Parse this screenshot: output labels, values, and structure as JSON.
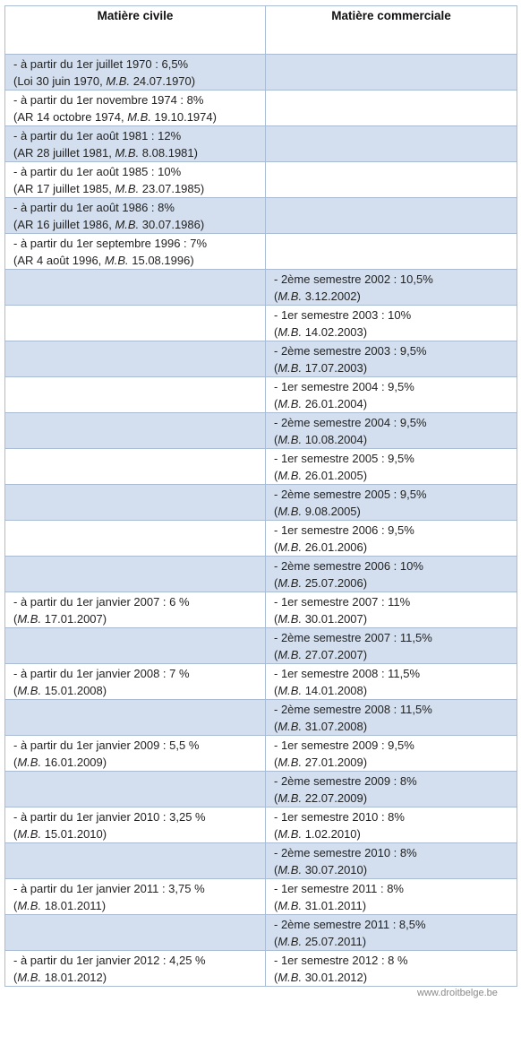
{
  "table": {
    "headers": [
      "Matière civile",
      "Matière commerciale"
    ],
    "rows": [
      {
        "civil": [
          {
            "t": "- à partir du 1er juillet 1970 : 6,5%"
          },
          {
            "p": "(Loi 30 juin 1970, ",
            "mb": "M.B.",
            "s": " 24.07.1970)"
          }
        ],
        "comm": []
      },
      {
        "civil": [
          {
            "t": "- à partir du 1er novembre 1974 : 8%"
          },
          {
            "p": "(AR 14 octobre 1974, ",
            "mb": "M.B.",
            "s": " 19.10.1974)"
          }
        ],
        "comm": []
      },
      {
        "civil": [
          {
            "t": "- à partir du 1er août 1981 : 12%"
          },
          {
            "p": "(AR 28 juillet 1981, ",
            "mb": "M.B.",
            "s": " 8.08.1981)"
          }
        ],
        "comm": []
      },
      {
        "civil": [
          {
            "t": "- à partir du 1er août 1985 : 10%"
          },
          {
            "p": "(AR 17 juillet 1985, ",
            "mb": "M.B.",
            "s": " 23.07.1985)"
          }
        ],
        "comm": []
      },
      {
        "civil": [
          {
            "t": "- à partir du 1er août 1986 : 8%"
          },
          {
            "p": "(AR 16 juillet 1986, ",
            "mb": "M.B.",
            "s": " 30.07.1986)"
          }
        ],
        "comm": []
      },
      {
        "civil": [
          {
            "t": "- à partir du 1er septembre 1996 : 7%"
          },
          {
            "p": "(AR 4 août 1996, ",
            "mb": "M.B.",
            "s": " 15.08.1996)"
          }
        ],
        "comm": []
      },
      {
        "civil": [],
        "comm": [
          {
            "t": "- 2ème semestre 2002 : 10,5%"
          },
          {
            "p": "(",
            "mb": "M.B.",
            "s": " 3.12.2002)"
          }
        ]
      },
      {
        "civil": [],
        "comm": [
          {
            "t": "- 1er semestre 2003 : 10%"
          },
          {
            "p": "(",
            "mb": "M.B.",
            "s": " 14.02.2003)"
          }
        ]
      },
      {
        "civil": [],
        "comm": [
          {
            "t": "- 2ème semestre 2003 : 9,5%"
          },
          {
            "p": "(",
            "mb": "M.B.",
            "s": " 17.07.2003)"
          }
        ]
      },
      {
        "civil": [],
        "comm": [
          {
            "t": "- 1er semestre 2004 : 9,5%"
          },
          {
            "p": "(",
            "mb": "M.B.",
            "s": " 26.01.2004)"
          }
        ]
      },
      {
        "civil": [],
        "comm": [
          {
            "t": "- 2ème semestre 2004 : 9,5%"
          },
          {
            "p": "(",
            "mb": "M.B.",
            "s": " 10.08.2004)"
          }
        ]
      },
      {
        "civil": [],
        "comm": [
          {
            "t": "- 1er semestre 2005 : 9,5%"
          },
          {
            "p": "(",
            "mb": "M.B.",
            "s": " 26.01.2005)"
          }
        ]
      },
      {
        "civil": [],
        "comm": [
          {
            "t": "- 2ème semestre 2005 : 9,5%"
          },
          {
            "p": "(",
            "mb": "M.B.",
            "s": " 9.08.2005)"
          }
        ]
      },
      {
        "civil": [],
        "comm": [
          {
            "t": "- 1er semestre 2006 : 9,5%"
          },
          {
            "p": "(",
            "mb": "M.B.",
            "s": " 26.01.2006)"
          }
        ]
      },
      {
        "civil": [],
        "comm": [
          {
            "t": "- 2ème semestre 2006 : 10%"
          },
          {
            "p": "(",
            "mb": "M.B.",
            "s": " 25.07.2006)"
          }
        ]
      },
      {
        "civil": [
          {
            "t": "- à partir du 1er janvier 2007 : 6 %"
          },
          {
            "p": "(",
            "mb": "M.B.",
            "s": " 17.01.2007)"
          }
        ],
        "comm": [
          {
            "t": "- 1er semestre 2007 : 11%"
          },
          {
            "p": "(",
            "mb": "M.B.",
            "s": " 30.01.2007)"
          }
        ]
      },
      {
        "civil": [],
        "comm": [
          {
            "t": "- 2ème semestre 2007 : 11,5%"
          },
          {
            "p": "(",
            "mb": "M.B.",
            "s": " 27.07.2007)"
          }
        ]
      },
      {
        "civil": [
          {
            "t": "- à partir du 1er janvier 2008 : 7 %"
          },
          {
            "p": "(",
            "mb": "M.B.",
            "s": " 15.01.2008)"
          }
        ],
        "comm": [
          {
            "t": "- 1er semestre 2008 : 11,5%"
          },
          {
            "p": "(",
            "mb": "M.B.",
            "s": " 14.01.2008)"
          }
        ]
      },
      {
        "civil": [],
        "comm": [
          {
            "t": "- 2ème semestre 2008 : 11,5%"
          },
          {
            "p": "(",
            "mb": "M.B.",
            "s": " 31.07.2008)"
          }
        ]
      },
      {
        "civil": [
          {
            "t": "- à partir du 1er janvier 2009 : 5,5 %"
          },
          {
            "p": "(",
            "mb": "M.B.",
            "s": " 16.01.2009)"
          }
        ],
        "comm": [
          {
            "t": "- 1er semestre 2009 : 9,5%"
          },
          {
            "p": "(",
            "mb": "M.B.",
            "s": " 27.01.2009)"
          }
        ]
      },
      {
        "civil": [],
        "comm": [
          {
            "t": "- 2ème semestre 2009 : 8%"
          },
          {
            "p": "(",
            "mb": "M.B.",
            "s": " 22.07.2009)"
          }
        ]
      },
      {
        "civil": [
          {
            "t": "- à partir du 1er janvier 2010 : 3,25 %"
          },
          {
            "p": "(",
            "mb": "M.B.",
            "s": " 15.01.2010)"
          }
        ],
        "comm": [
          {
            "t": "- 1er semestre 2010 : 8%"
          },
          {
            "p": "(",
            "mb": "M.B.",
            "s": " 1.02.2010)"
          }
        ]
      },
      {
        "civil": [],
        "comm": [
          {
            "t": "- 2ème semestre 2010 : 8%"
          },
          {
            "p": "(",
            "mb": "M.B.",
            "s": " 30.07.2010)"
          }
        ]
      },
      {
        "civil": [
          {
            "t": "- à partir du 1er janvier 2011 : 3,75 %"
          },
          {
            "p": "(",
            "mb": "M.B.",
            "s": " 18.01.2011)"
          }
        ],
        "comm": [
          {
            "t": "- 1er semestre 2011 : 8%"
          },
          {
            "p": "(",
            "mb": "M.B.",
            "s": " 31.01.2011)"
          }
        ]
      },
      {
        "civil": [],
        "comm": [
          {
            "t": "- 2ème semestre 2011 : 8,5%"
          },
          {
            "p": "(",
            "mb": "M.B.",
            "s": " 25.07.2011)"
          }
        ]
      },
      {
        "civil": [
          {
            "t": "- à partir du 1er janvier 2012 : 4,25 %"
          },
          {
            "p": "(",
            "mb": "M.B.",
            "s": " 18.01.2012)"
          }
        ],
        "comm": [
          {
            "t": "- 1er semestre 2012 : 8 %"
          },
          {
            "p": "(",
            "mb": "M.B.",
            "s": " 30.01.2012)"
          }
        ]
      }
    ]
  },
  "footer": {
    "text": "www.droitbelge.be"
  },
  "colors": {
    "shade": "#d3dfee",
    "border": "#a9bcd4"
  }
}
